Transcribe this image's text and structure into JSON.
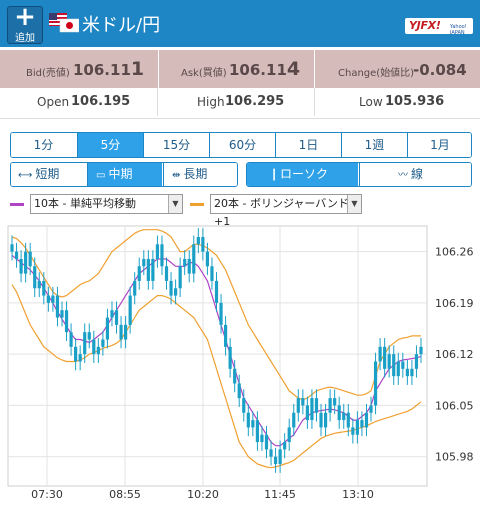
{
  "header": {
    "add_label": "追加",
    "add_icon": "plus-icon",
    "flag_icon": "us-jp-flag-icon",
    "title": "米ドル/円",
    "logo_text": "YJFX!",
    "logo_sub": "Yahoo! JAPAN",
    "color": "#1f86c6"
  },
  "quote": {
    "bid_label": "Bid(売値)",
    "bid_value_main": "106.11",
    "bid_value_last": "1",
    "ask_label": "Ask(買値)",
    "ask_value_main": "106.11",
    "ask_value_last": "4",
    "change_label": "Change(始値比)",
    "change_value": "-0.084",
    "bg_color": "#d6bbbb"
  },
  "ohl": {
    "open_label": "Open",
    "open_value": "106.195",
    "high_label": "High",
    "high_value": "106.295",
    "low_label": "Low",
    "low_value": "105.936"
  },
  "timeframes": [
    "1分",
    "5分",
    "15分",
    "60分",
    "1日",
    "1週",
    "1月"
  ],
  "active_timeframe": "5分",
  "period_buttons": {
    "short": "短期",
    "mid": "中期",
    "long": "長期",
    "active": "中期"
  },
  "chart_type_buttons": {
    "candle": "ローソク",
    "line": "線",
    "active": "ローソク"
  },
  "indicators": [
    {
      "select_value": "10本 - 単純平均移動",
      "color": "#b044c4"
    },
    {
      "select_value": "20本 - ボリンジャーバンド+1",
      "color": "#f0a030"
    }
  ],
  "chart_data": {
    "type": "candlestick",
    "title": "",
    "xlabel": "",
    "ylabel": "",
    "x_ticks": [
      "07:30",
      "08:55",
      "10:20",
      "11:45",
      "13:10"
    ],
    "y_ticks": [
      106.26,
      106.19,
      106.12,
      106.05,
      105.98
    ],
    "ylim": [
      105.94,
      106.295
    ],
    "grid": true,
    "candle_color": "#1aa0c6",
    "close_values": [
      106.26,
      106.25,
      106.23,
      106.26,
      106.24,
      106.21,
      106.22,
      106.2,
      106.19,
      106.2,
      106.17,
      106.18,
      106.15,
      106.13,
      106.11,
      106.12,
      106.15,
      106.14,
      106.12,
      106.13,
      106.14,
      106.17,
      106.18,
      106.16,
      106.14,
      106.16,
      106.2,
      106.22,
      106.24,
      106.25,
      106.22,
      106.25,
      106.27,
      106.24,
      106.22,
      106.2,
      106.21,
      106.24,
      106.25,
      106.23,
      106.27,
      106.28,
      106.26,
      106.24,
      106.22,
      106.19,
      106.16,
      106.13,
      106.1,
      106.08,
      106.06,
      106.04,
      106.02,
      106.03,
      106.0,
      106.01,
      105.99,
      105.98,
      105.97,
      105.99,
      106.0,
      106.02,
      106.04,
      106.06,
      106.05,
      106.03,
      106.06,
      106.04,
      106.02,
      106.04,
      106.06,
      106.05,
      106.03,
      106.04,
      106.02,
      106.01,
      106.03,
      106.02,
      106.04,
      106.05,
      106.11,
      106.13,
      106.1,
      106.12,
      106.09,
      106.11,
      106.1,
      106.09,
      106.1,
      106.12,
      106.13
    ],
    "series": [
      {
        "name": "10本 - 単純平均移動",
        "type": "line",
        "color": "#b044c4",
        "values": [
          106.255,
          106.25,
          106.245,
          106.24,
          106.235,
          106.228,
          106.22,
          106.21,
          106.2,
          106.19,
          106.178,
          106.168,
          106.158,
          106.148,
          106.14,
          106.14,
          106.138,
          106.136,
          106.14,
          106.145,
          106.15,
          106.16,
          106.17,
          106.18,
          106.19,
          106.2,
          106.21,
          106.22,
          106.23,
          106.235,
          106.24,
          106.245,
          106.25,
          106.25,
          106.25,
          106.245,
          106.24,
          106.24,
          106.24,
          106.245,
          106.245,
          106.24,
          106.23,
          106.22,
          106.2,
          106.18,
          106.16,
          106.14,
          106.12,
          106.1,
          106.08,
          106.06,
          106.05,
          106.04,
          106.03,
          106.02,
          106.01,
          106.0,
          105.995,
          105.995,
          106.0,
          106.005,
          106.01,
          106.02,
          106.03,
          106.035,
          106.04,
          106.042,
          106.043,
          106.044,
          106.045,
          106.044,
          106.042,
          106.04,
          106.035,
          106.03,
          106.03,
          106.035,
          106.04,
          106.05,
          106.07,
          106.08,
          106.09,
          106.1,
          106.105,
          106.11,
          106.112,
          106.113,
          106.114,
          106.115,
          106.117
        ]
      },
      {
        "name": "Bollinger upper",
        "type": "line",
        "color": "#f0a030",
        "values": [
          106.28,
          106.278,
          106.272,
          106.265,
          106.255,
          106.245,
          106.235,
          106.225,
          106.215,
          106.205,
          106.2,
          106.198,
          106.2,
          106.205,
          106.21,
          106.215,
          106.218,
          106.22,
          106.225,
          106.23,
          106.24,
          106.25,
          106.26,
          106.265,
          106.27,
          106.275,
          106.28,
          106.285,
          106.288,
          106.29,
          106.29,
          106.29,
          106.29,
          106.288,
          106.285,
          106.28,
          106.27,
          106.26,
          106.26,
          106.265,
          106.27,
          106.27,
          106.268,
          106.265,
          106.26,
          106.255,
          106.245,
          106.235,
          106.22,
          106.205,
          106.19,
          106.175,
          106.16,
          106.15,
          106.14,
          106.13,
          106.12,
          106.11,
          106.1,
          106.09,
          106.08,
          106.07,
          106.065,
          106.06,
          106.058,
          106.06,
          106.065,
          106.07,
          106.072,
          106.074,
          106.075,
          106.074,
          106.072,
          106.07,
          106.068,
          106.066,
          106.064,
          106.064,
          106.066,
          106.07,
          106.09,
          106.11,
          106.12,
          106.13,
          106.135,
          106.14,
          106.142,
          106.143,
          106.145,
          106.145,
          106.145
        ]
      },
      {
        "name": "Bollinger lower",
        "type": "line",
        "color": "#f0a030",
        "values": [
          106.215,
          106.205,
          106.19,
          106.175,
          106.16,
          106.15,
          106.14,
          106.13,
          106.125,
          106.12,
          106.115,
          106.112,
          106.11,
          106.11,
          106.11,
          106.112,
          106.115,
          106.12,
          106.122,
          106.125,
          106.128,
          106.13,
          106.132,
          106.135,
          106.14,
          106.15,
          106.16,
          106.17,
          106.18,
          106.185,
          106.19,
          106.195,
          106.2,
          106.2,
          106.198,
          106.195,
          106.19,
          106.185,
          106.18,
          106.175,
          106.17,
          106.16,
          106.15,
          106.14,
          106.12,
          106.1,
          106.08,
          106.06,
          106.04,
          106.02,
          106.0,
          105.99,
          105.98,
          105.975,
          105.97,
          105.968,
          105.966,
          105.965,
          105.966,
          105.968,
          105.97,
          105.972,
          105.975,
          105.98,
          105.985,
          105.99,
          105.995,
          106.0,
          106.005,
          106.008,
          106.01,
          106.012,
          106.013,
          106.014,
          106.015,
          106.016,
          106.018,
          106.02,
          106.022,
          106.025,
          106.028,
          106.03,
          106.032,
          106.034,
          106.036,
          106.038,
          106.04,
          106.042,
          106.045,
          106.05,
          106.055
        ]
      }
    ]
  }
}
